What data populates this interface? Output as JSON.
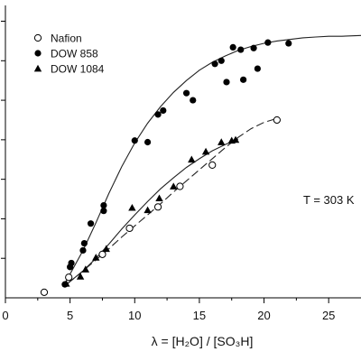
{
  "chart_data": {
    "type": "scatter",
    "title": "",
    "xlabel": "λ = [H₂O] / [SO₃H]",
    "ylabel": "",
    "xlim": [
      0,
      27.5
    ],
    "ylim": [
      0,
      0.37
    ],
    "x_ticks": [
      0,
      5,
      10,
      15,
      20,
      25
    ],
    "x_tick_labels": [
      "0",
      "5",
      "10",
      "15",
      "20",
      "25"
    ],
    "y_ticks": [
      0.05,
      0.1,
      0.15,
      0.2,
      0.25,
      0.3,
      0.35
    ],
    "grid": false,
    "legend_position": "top-left",
    "annotation": "T = 303 K",
    "series": [
      {
        "name": "Nafion",
        "marker": "open-circle",
        "color": "#000000",
        "points": [
          [
            3.0,
            0.007
          ],
          [
            4.9,
            0.026
          ],
          [
            7.5,
            0.055
          ],
          [
            9.6,
            0.088
          ],
          [
            11.8,
            0.115
          ],
          [
            13.5,
            0.141
          ],
          [
            16.0,
            0.168
          ],
          [
            21.0,
            0.225
          ]
        ]
      },
      {
        "name": "DOW 858",
        "marker": "filled-circle",
        "color": "#000000",
        "points": [
          [
            4.6,
            0.017
          ],
          [
            5.0,
            0.039
          ],
          [
            5.1,
            0.044
          ],
          [
            6.0,
            0.06
          ],
          [
            6.1,
            0.069
          ],
          [
            6.6,
            0.094
          ],
          [
            7.6,
            0.117
          ],
          [
            7.6,
            0.11
          ],
          [
            10.0,
            0.199
          ],
          [
            11.0,
            0.197
          ],
          [
            11.8,
            0.232
          ],
          [
            12.2,
            0.237
          ],
          [
            14.0,
            0.259
          ],
          [
            14.5,
            0.25
          ],
          [
            16.2,
            0.296
          ],
          [
            16.7,
            0.3
          ],
          [
            17.1,
            0.273
          ],
          [
            17.6,
            0.317
          ],
          [
            18.2,
            0.314
          ],
          [
            18.4,
            0.276
          ],
          [
            19.2,
            0.316
          ],
          [
            19.5,
            0.29
          ],
          [
            20.3,
            0.323
          ],
          [
            21.9,
            0.322
          ]
        ]
      },
      {
        "name": "DOW 1084",
        "marker": "filled-triangle",
        "color": "#000000",
        "points": [
          [
            4.7,
            0.018
          ],
          [
            5.8,
            0.027
          ],
          [
            6.2,
            0.036
          ],
          [
            7.0,
            0.051
          ],
          [
            7.8,
            0.062
          ],
          [
            9.8,
            0.114
          ],
          [
            11.0,
            0.111
          ],
          [
            11.9,
            0.126
          ],
          [
            13.0,
            0.141
          ],
          [
            14.4,
            0.175
          ],
          [
            15.5,
            0.185
          ],
          [
            16.7,
            0.197
          ],
          [
            17.5,
            0.199
          ],
          [
            17.8,
            0.2
          ]
        ]
      }
    ],
    "fit_curves": [
      {
        "style": "solid",
        "points": [
          [
            5.0,
            0.03
          ],
          [
            6.0,
            0.06
          ],
          [
            7.0,
            0.095
          ],
          [
            8.0,
            0.132
          ],
          [
            9.0,
            0.166
          ],
          [
            10.0,
            0.196
          ],
          [
            11.0,
            0.221
          ],
          [
            12.0,
            0.242
          ],
          [
            13.0,
            0.26
          ],
          [
            14.0,
            0.275
          ],
          [
            15.0,
            0.288
          ],
          [
            16.0,
            0.298
          ],
          [
            17.0,
            0.306
          ],
          [
            18.0,
            0.313
          ],
          [
            19.0,
            0.318
          ],
          [
            20.0,
            0.322
          ],
          [
            21.0,
            0.325
          ],
          [
            22.0,
            0.327
          ],
          [
            23.0,
            0.329
          ],
          [
            24.0,
            0.33
          ],
          [
            25.0,
            0.331
          ],
          [
            26.0,
            0.331
          ],
          [
            27.5,
            0.332
          ]
        ]
      },
      {
        "style": "solid",
        "points": [
          [
            4.8,
            0.018
          ],
          [
            6.0,
            0.034
          ],
          [
            7.0,
            0.05
          ],
          [
            8.0,
            0.068
          ],
          [
            9.0,
            0.087
          ],
          [
            10.0,
            0.105
          ],
          [
            11.0,
            0.122
          ],
          [
            12.0,
            0.138
          ],
          [
            13.0,
            0.152
          ],
          [
            14.0,
            0.165
          ],
          [
            15.0,
            0.176
          ],
          [
            16.0,
            0.186
          ],
          [
            17.0,
            0.194
          ],
          [
            18.0,
            0.201
          ]
        ]
      },
      {
        "style": "dashed",
        "points": [
          [
            4.8,
            0.018
          ],
          [
            6.0,
            0.034
          ],
          [
            7.0,
            0.048
          ],
          [
            8.0,
            0.062
          ],
          [
            9.0,
            0.077
          ],
          [
            10.0,
            0.091
          ],
          [
            11.0,
            0.105
          ],
          [
            12.0,
            0.119
          ],
          [
            13.0,
            0.134
          ],
          [
            14.0,
            0.148
          ],
          [
            15.0,
            0.162
          ],
          [
            16.0,
            0.176
          ],
          [
            17.0,
            0.19
          ],
          [
            18.0,
            0.203
          ],
          [
            19.0,
            0.214
          ],
          [
            20.0,
            0.222
          ],
          [
            21.0,
            0.227
          ]
        ]
      }
    ]
  }
}
